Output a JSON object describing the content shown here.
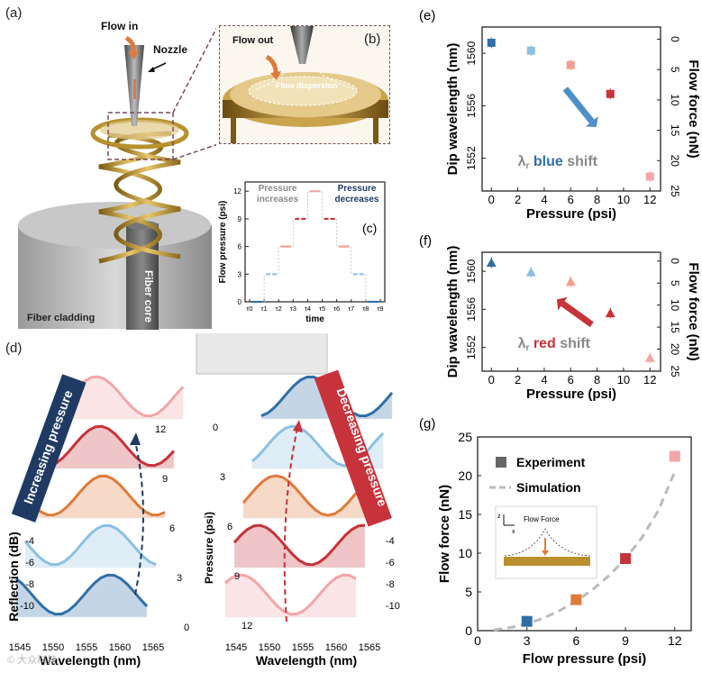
{
  "figure": {
    "panels": {
      "a": {
        "letter": "(a)",
        "flow_in": "Flow in",
        "nozzle": "Nozzle",
        "fiber_core": "Fiber core",
        "fiber_cladding": "Fiber cladding"
      },
      "b": {
        "letter": "(b)",
        "flow_out": "Flow out",
        "flow_dispersion": "Flow dispersion"
      },
      "d": {
        "letter": "(d)",
        "left_banner": "Increasing pressure",
        "right_banner": "Decreasing pressure",
        "reflection_label": "Reflection (dB)",
        "pressure_label": "Pressure (psi)",
        "wavelength_label": "Wavelength (nm)",
        "wl_ticks": [
          "1545",
          "1550",
          "1555",
          "1560",
          "1565"
        ],
        "refl_ticks": [
          "-4",
          "-6",
          "-8",
          "-10"
        ],
        "left_pressure_ticks": [
          "0",
          "3",
          "6",
          "9",
          "12"
        ],
        "right_pressure_ticks": [
          "0",
          "3",
          "6",
          "9",
          "12"
        ]
      },
      "e": {
        "letter": "(e)",
        "shift_prefix": "λ",
        "shift_sub": "r",
        "shift_word": "blue",
        "shift_suffix": "shift"
      },
      "f": {
        "letter": "(f)",
        "shift_prefix": "λ",
        "shift_sub": "r",
        "shift_word": "red",
        "shift_suffix": "shift"
      },
      "g": {
        "letter": "(g)",
        "inset_title": "Flow Force",
        "inset_z": "z",
        "inset_x": "x"
      }
    },
    "watermark": "© 大众科技"
  },
  "chart_data": [
    {
      "id": "c",
      "type": "line",
      "title": "(c)",
      "xlabel": "time",
      "ylabel": "Flow pressure (psi)",
      "ylim": [
        0,
        13
      ],
      "yticks": [
        "0",
        "3",
        "6",
        "9",
        "12"
      ],
      "x_ticks": [
        "τ0",
        "τ1",
        "τ2",
        "τ3",
        "τ4",
        "τ5",
        "τ6",
        "τ7",
        "τ8",
        "τ9"
      ],
      "annotations": [
        "Pressure increases",
        "Pressure decreases"
      ],
      "series": [
        {
          "name": "Flow pressure",
          "values": [
            0,
            3,
            6,
            9,
            12,
            9,
            6,
            3,
            0
          ]
        }
      ]
    },
    {
      "id": "e",
      "type": "scatter",
      "title": "(e)",
      "xlabel": "Pressure (psi)",
      "ylabel": "Dip wavelength (nm)",
      "y2label": "Flow force (nN)",
      "xlim": [
        -0.7,
        12.8
      ],
      "ylim": [
        1549.5,
        1562
      ],
      "y2lim": [
        -2,
        25
      ],
      "xticks": [
        "0",
        "2",
        "4",
        "6",
        "8",
        "10",
        "12"
      ],
      "yticks": [
        "1552",
        "1556",
        "1560"
      ],
      "y2ticks": [
        "0",
        "5",
        "10",
        "15",
        "20",
        "25"
      ],
      "marker": "square",
      "series": [
        {
          "name": "Dip wavelength",
          "x": [
            0,
            3,
            6,
            9,
            12
          ],
          "y": [
            1560.8,
            1560.2,
            1559.1,
            1556.9,
            1550.6
          ]
        }
      ]
    },
    {
      "id": "f",
      "type": "scatter",
      "title": "(f)",
      "xlabel": "Pressure (psi)",
      "ylabel": "Dip wavelength (nm)",
      "y2label": "Flow force (nN)",
      "xlim": [
        -0.7,
        12.8
      ],
      "ylim": [
        1549.5,
        1562
      ],
      "y2lim": [
        -2,
        25
      ],
      "xticks": [
        "0",
        "2",
        "4",
        "6",
        "8",
        "10",
        "12"
      ],
      "yticks": [
        "1552",
        "1556",
        "1560"
      ],
      "y2ticks": [
        "0",
        "5",
        "10",
        "15",
        "20",
        "25"
      ],
      "marker": "triangle",
      "series": [
        {
          "name": "Dip wavelength",
          "x": [
            0,
            3,
            6,
            9,
            12
          ],
          "y": [
            1560.9,
            1559.9,
            1558.9,
            1555.6,
            1550.9
          ]
        }
      ]
    },
    {
      "id": "g",
      "type": "scatter",
      "title": "(g)",
      "xlabel": "Flow pressure (psi)",
      "ylabel": "Flow force (nN)",
      "xlim": [
        0,
        13
      ],
      "ylim": [
        0,
        25
      ],
      "xticks": [
        "0",
        "3",
        "6",
        "9",
        "12"
      ],
      "yticks": [
        "0",
        "5",
        "10",
        "15",
        "20",
        "25"
      ],
      "legend": [
        "Experiment",
        "Simulation"
      ],
      "series": [
        {
          "name": "Experiment",
          "x": [
            3,
            6,
            9,
            12
          ],
          "y": [
            1.2,
            4.0,
            9.3,
            22.5
          ]
        },
        {
          "name": "Simulation",
          "x": [
            1,
            2,
            3,
            4,
            5,
            6,
            7,
            8,
            9,
            10,
            11,
            12
          ],
          "y": [
            0.1,
            0.4,
            0.9,
            1.6,
            2.6,
            3.8,
            5.3,
            7.1,
            9.3,
            12.0,
            15.5,
            20.5
          ]
        }
      ]
    }
  ],
  "colors": {
    "blue_dark": "#2f6fa7",
    "blue_light": "#8cc0e2",
    "orange": "#e07a3a",
    "salmon": "#f0a090",
    "red": "#c8323a",
    "pink": "#f3a5a8",
    "navy": "#1f3a63",
    "gold": "#b8912e",
    "gray_text": "#888888",
    "sim": "#bbbbbb"
  }
}
